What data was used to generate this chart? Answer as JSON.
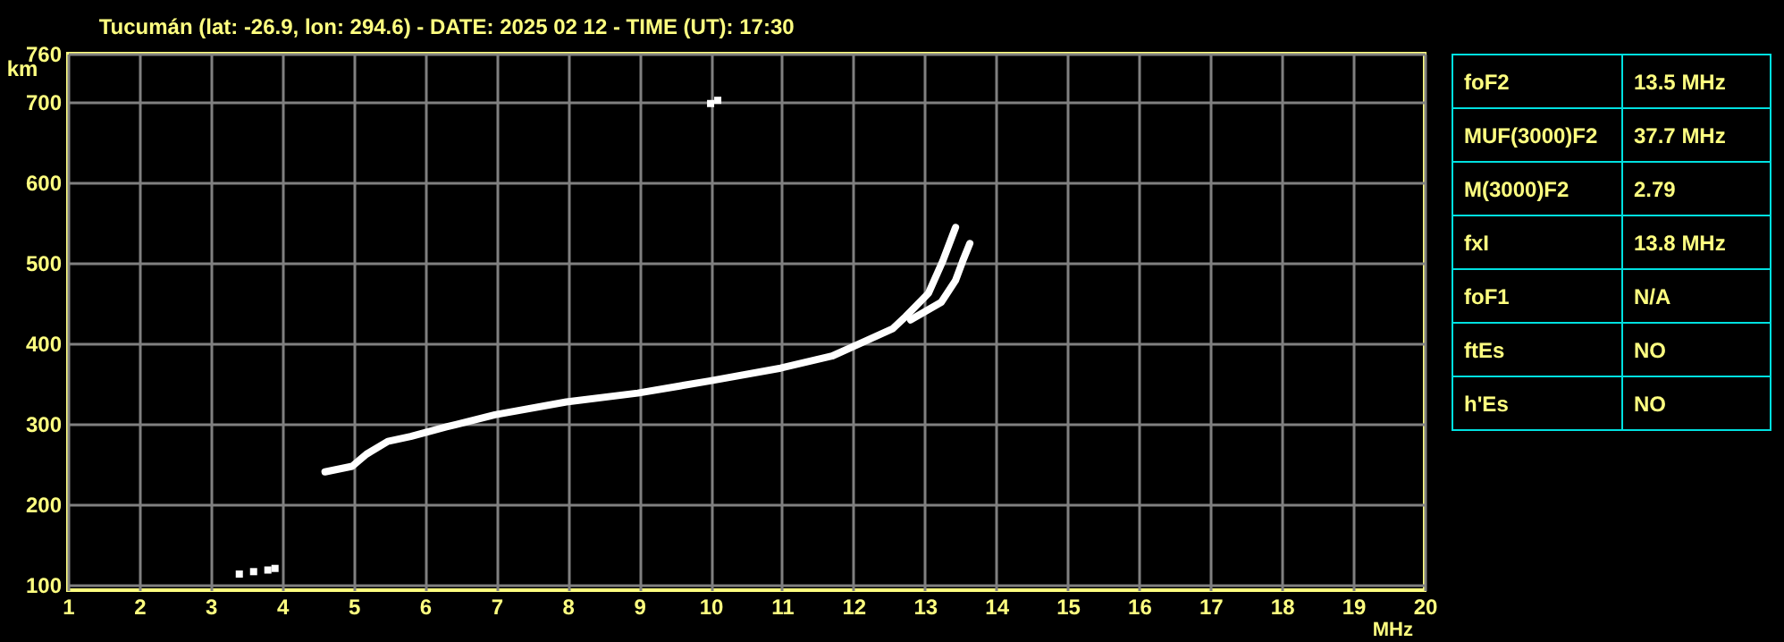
{
  "chart_data": [
    {
      "type": "line",
      "title": "Tucumán (lat: -26.9, lon: 294.6) - DATE: 2025 02 12 - TIME (UT): 17:30",
      "xlabel": "MHz",
      "ylabel": "km",
      "xlim": [
        1,
        20
      ],
      "ylim": [
        93,
        760
      ],
      "xticks": [
        1,
        2,
        3,
        4,
        5,
        6,
        7,
        8,
        9,
        10,
        11,
        12,
        13,
        14,
        15,
        16,
        17,
        18,
        19,
        20
      ],
      "yticks": [
        100,
        200,
        300,
        400,
        500,
        600,
        700,
        760
      ],
      "grid": true,
      "series": [
        {
          "color": "#ffffff",
          "x": [
            4.6,
            4.98,
            5.18,
            5.48,
            5.8,
            6.3,
            6.98,
            7.98,
            8.98,
            9.98,
            10.98,
            11.7,
            12.1,
            12.55,
            12.73,
            13.05,
            13.25,
            13.43
          ],
          "values": [
            240,
            247,
            262,
            278,
            284,
            296,
            311,
            327,
            338,
            353,
            369,
            384,
            400,
            418,
            433,
            462,
            502,
            544
          ]
        },
        {
          "color": "#ffffff",
          "x": [
            12.8,
            13.23,
            13.43,
            13.53,
            13.63
          ],
          "values": [
            429,
            451,
            478,
            502,
            524
          ]
        },
        {
          "type": "scatter",
          "color": "#ffffff",
          "x": [
            3.4,
            3.6,
            3.8,
            3.9,
            10.0,
            10.1
          ],
          "values": [
            113,
            116,
            118,
            120,
            698,
            702
          ]
        }
      ]
    },
    {
      "type": "other",
      "annotations": [
        "foF2",
        "13.5 MHz",
        "MUF(3000)F2",
        "37.7 MHz",
        "M(3000)F2",
        "2.79",
        "fxI",
        "13.8 MHz",
        "foF1",
        "N/A",
        "ftEs",
        "NO",
        "h'Es",
        "NO"
      ]
    }
  ]
}
